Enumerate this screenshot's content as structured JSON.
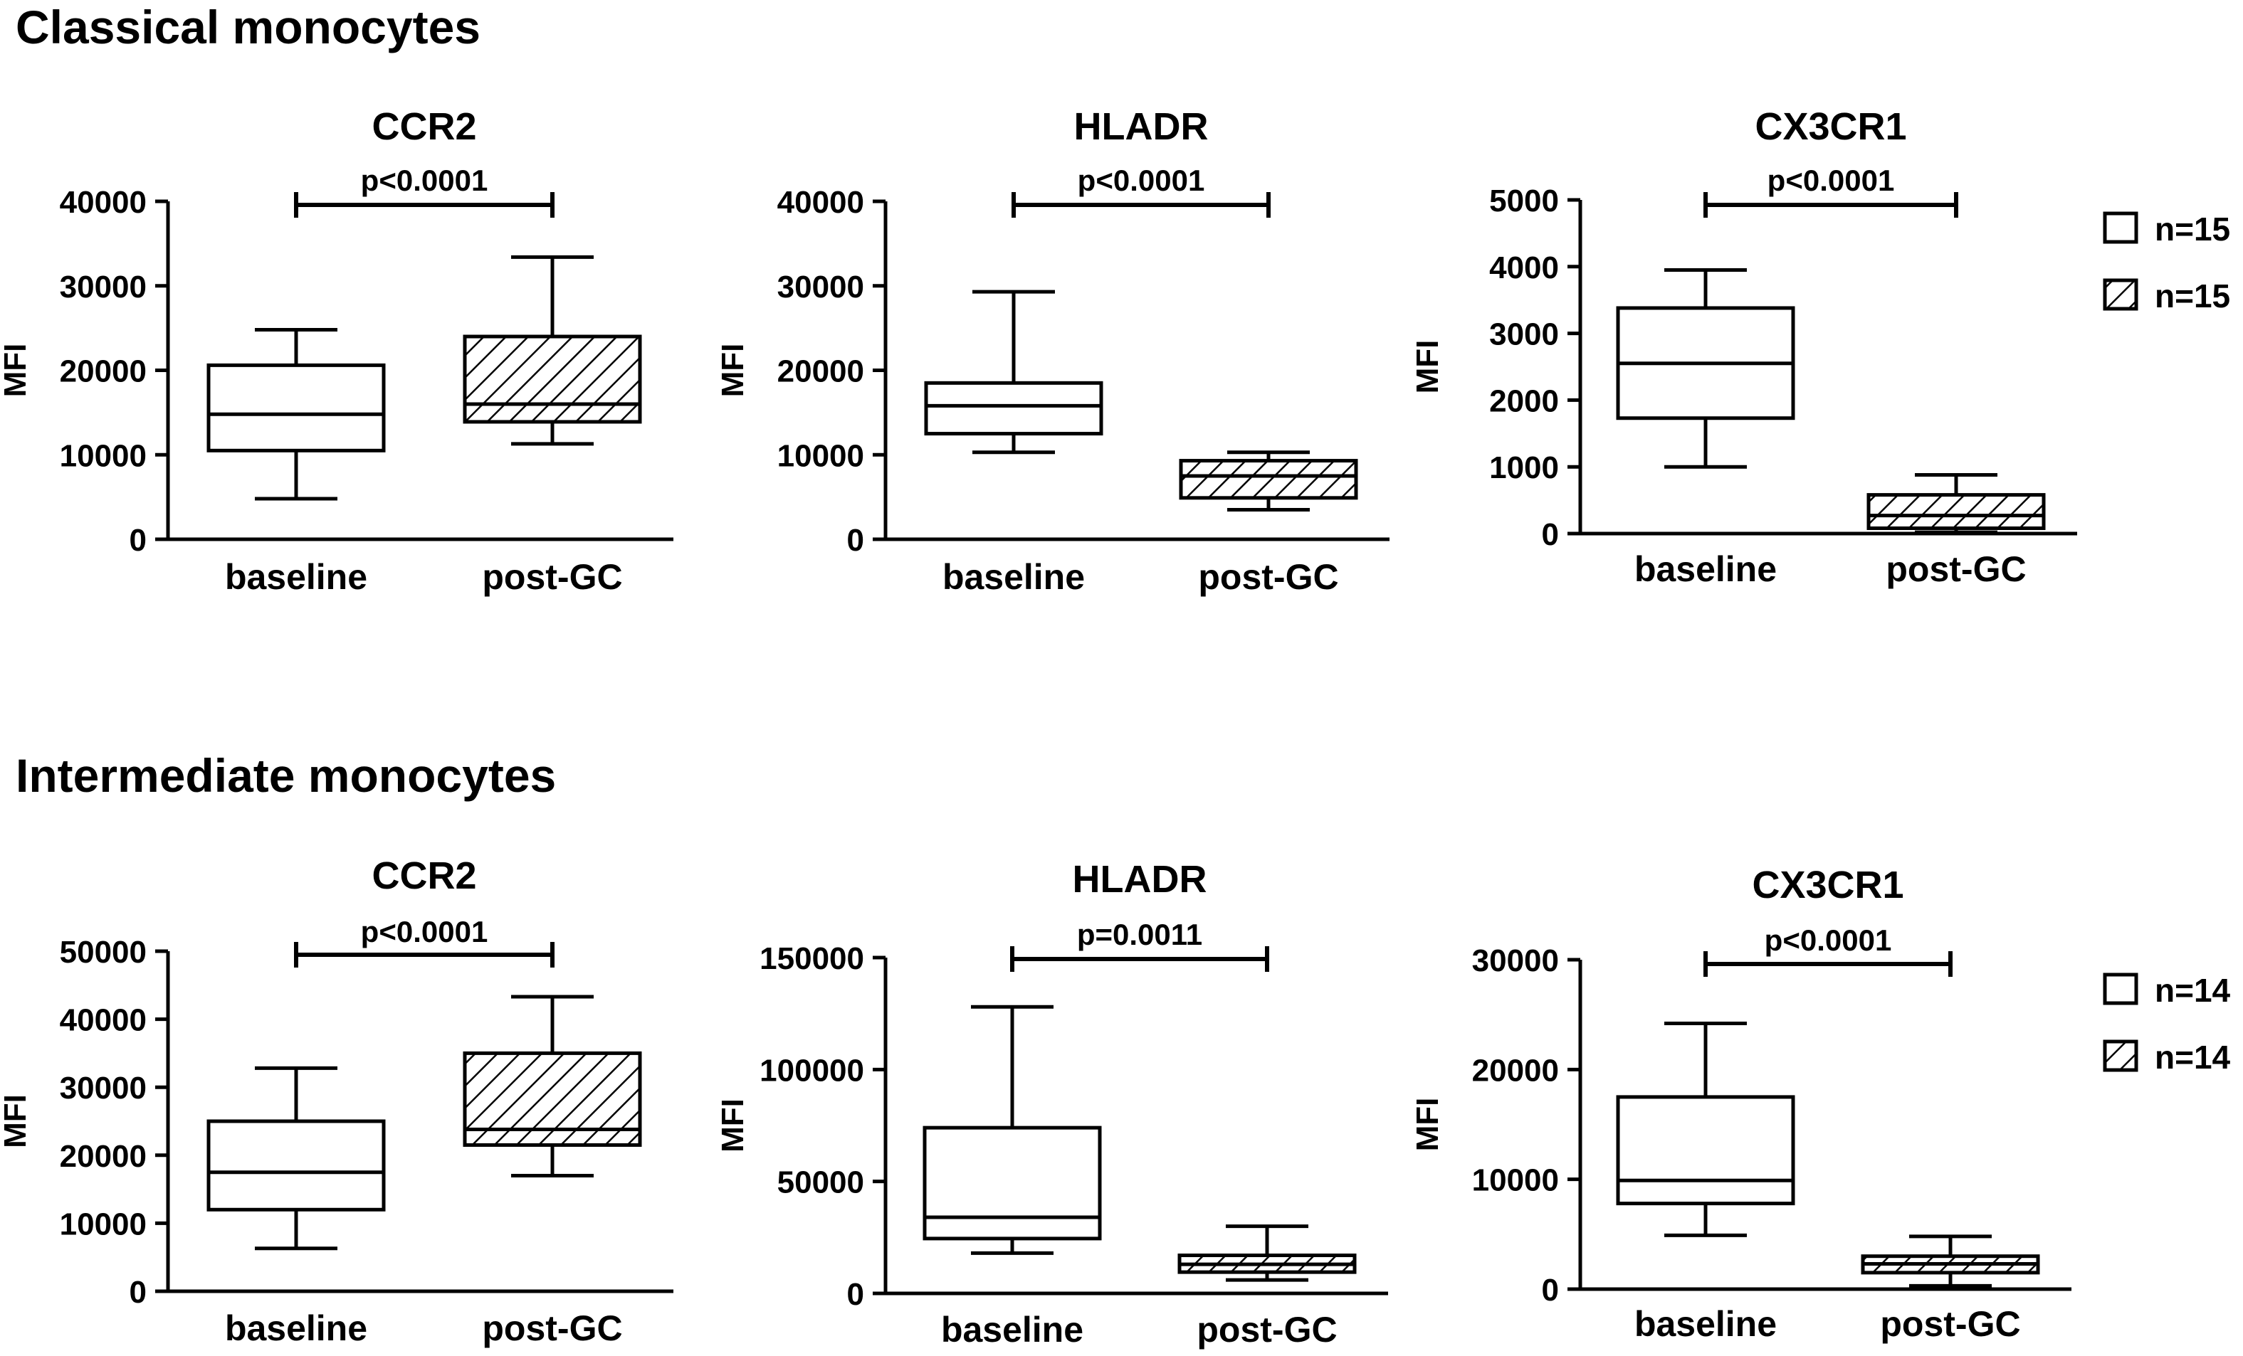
{
  "sections": [
    {
      "title": "Classical monocytes",
      "legend": [
        "n=15",
        "n=15"
      ]
    },
    {
      "title": "Intermediate monocytes",
      "legend": [
        "n=14",
        "n=14"
      ]
    }
  ],
  "colors": {
    "ink": "#000000",
    "fill": "#ffffff"
  },
  "chart_data": [
    {
      "type": "box",
      "section": 0,
      "title": "CCR2",
      "ylabel": "MFI",
      "categories": [
        "baseline",
        "post-GC"
      ],
      "ylim": [
        0,
        40000
      ],
      "yticks": [
        0,
        10000,
        20000,
        30000,
        40000
      ],
      "pvalue": "p<0.0001",
      "series": [
        {
          "category": "baseline",
          "pattern": "open",
          "min": 4800,
          "q1": 10500,
          "median": 14800,
          "q3": 20600,
          "max": 24800
        },
        {
          "category": "post-GC",
          "pattern": "hatched",
          "min": 11300,
          "q1": 13900,
          "median": 16000,
          "q3": 24000,
          "max": 33400
        }
      ]
    },
    {
      "type": "box",
      "section": 0,
      "title": "HLADR",
      "ylabel": "MFI",
      "categories": [
        "baseline",
        "post-GC"
      ],
      "ylim": [
        0,
        40000
      ],
      "yticks": [
        0,
        10000,
        20000,
        30000,
        40000
      ],
      "pvalue": "p<0.0001",
      "series": [
        {
          "category": "baseline",
          "pattern": "open",
          "min": 10300,
          "q1": 12500,
          "median": 15800,
          "q3": 18500,
          "max": 29300
        },
        {
          "category": "post-GC",
          "pattern": "hatched",
          "min": 3500,
          "q1": 4900,
          "median": 7500,
          "q3": 9300,
          "max": 10300
        }
      ]
    },
    {
      "type": "box",
      "section": 0,
      "title": "CX3CR1",
      "ylabel": "MFI",
      "categories": [
        "baseline",
        "post-GC"
      ],
      "ylim": [
        0,
        5000
      ],
      "yticks": [
        0,
        1000,
        2000,
        3000,
        4000,
        5000
      ],
      "pvalue": "p<0.0001",
      "series": [
        {
          "category": "baseline",
          "pattern": "open",
          "min": 1000,
          "q1": 1730,
          "median": 2550,
          "q3": 3380,
          "max": 3950
        },
        {
          "category": "post-GC",
          "pattern": "hatched",
          "min": 20,
          "q1": 80,
          "median": 270,
          "q3": 580,
          "max": 880
        }
      ]
    },
    {
      "type": "box",
      "section": 1,
      "title": "CCR2",
      "ylabel": "MFI",
      "categories": [
        "baseline",
        "post-GC"
      ],
      "ylim": [
        0,
        50000
      ],
      "yticks": [
        0,
        10000,
        20000,
        30000,
        40000,
        50000
      ],
      "pvalue": "p<0.0001",
      "series": [
        {
          "category": "baseline",
          "pattern": "open",
          "min": 6300,
          "q1": 12000,
          "median": 17500,
          "q3": 25000,
          "max": 32800
        },
        {
          "category": "post-GC",
          "pattern": "hatched",
          "min": 17000,
          "q1": 21500,
          "median": 23800,
          "q3": 35000,
          "max": 43300
        }
      ]
    },
    {
      "type": "box",
      "section": 1,
      "title": "HLADR",
      "ylabel": "MFI",
      "categories": [
        "baseline",
        "post-GC"
      ],
      "ylim": [
        0,
        150000
      ],
      "yticks": [
        0,
        50000,
        100000,
        150000
      ],
      "pvalue": "p=0.0011",
      "series": [
        {
          "category": "baseline",
          "pattern": "open",
          "min": 18000,
          "q1": 24500,
          "median": 34000,
          "q3": 74000,
          "max": 128000
        },
        {
          "category": "post-GC",
          "pattern": "hatched",
          "min": 6000,
          "q1": 9500,
          "median": 13000,
          "q3": 17000,
          "max": 30000
        }
      ]
    },
    {
      "type": "box",
      "section": 1,
      "title": "CX3CR1",
      "ylabel": "MFI",
      "categories": [
        "baseline",
        "post-GC"
      ],
      "ylim": [
        0,
        30000
      ],
      "yticks": [
        0,
        10000,
        20000,
        30000
      ],
      "pvalue": "p<0.0001",
      "series": [
        {
          "category": "baseline",
          "pattern": "open",
          "min": 4900,
          "q1": 7800,
          "median": 9900,
          "q3": 17500,
          "max": 24200
        },
        {
          "category": "post-GC",
          "pattern": "hatched",
          "min": 300,
          "q1": 1500,
          "median": 2300,
          "q3": 3000,
          "max": 4800
        }
      ]
    }
  ]
}
